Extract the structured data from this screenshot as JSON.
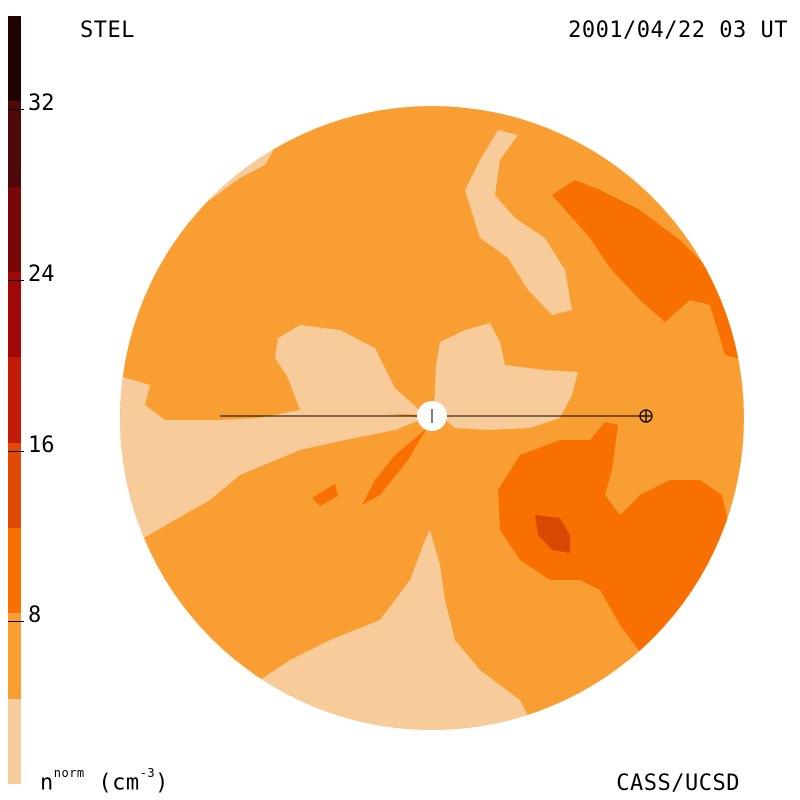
{
  "header": {
    "source": "STEL",
    "datetime": "2001/04/22 03 UT"
  },
  "footer": {
    "credit": "CASS/UCSD",
    "units_base": "n",
    "units_sup": "norm",
    "units_rest": "(cm",
    "units_exp": "-3",
    "units_close": ")"
  },
  "colorbar": {
    "ticks": [
      "32",
      "24",
      "16",
      "8"
    ],
    "tick_values": [
      32,
      24,
      16,
      8
    ],
    "range": [
      0,
      36
    ],
    "bands": [
      "#f8cc9a",
      "#f89e32",
      "#f87000",
      "#e04a06",
      "#c41a0a",
      "#a00808",
      "#780808",
      "#500808",
      "#200404"
    ]
  },
  "map": {
    "colors": {
      "level0": "#f8cc9a",
      "level1": "#f89e32",
      "level2": "#f87000",
      "level3": "#d84800"
    }
  }
}
